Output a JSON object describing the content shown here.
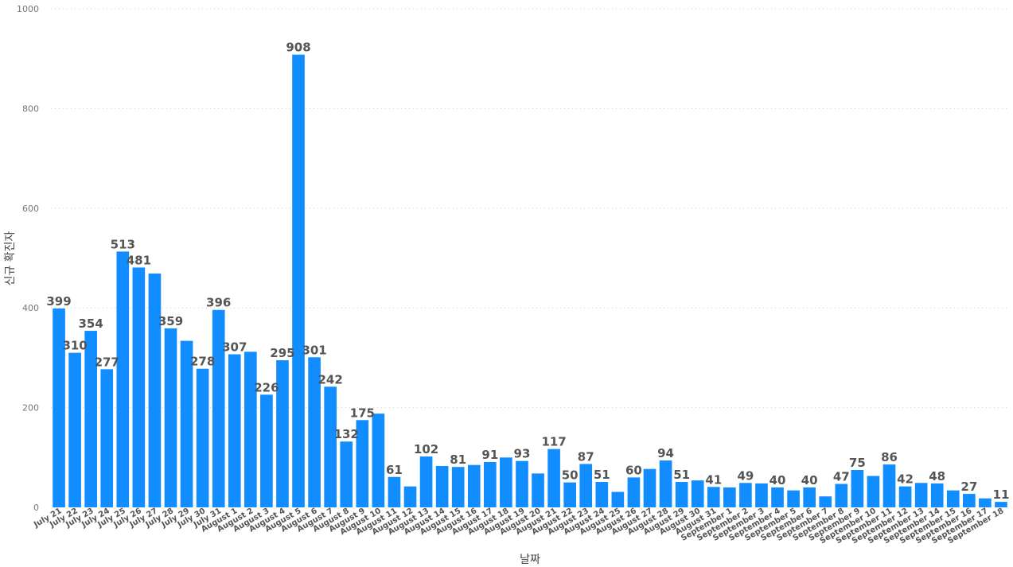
{
  "chart_data": {
    "type": "bar",
    "title": "",
    "xlabel": "날짜",
    "ylabel": "신규 확진자",
    "ylim": [
      0,
      1000
    ],
    "yticks": [
      0,
      200,
      400,
      600,
      800,
      1000
    ],
    "grid": true,
    "bar_color": "#118dff",
    "categories": [
      "July 21",
      "July 22",
      "July 23",
      "July 24",
      "July 25",
      "July 26",
      "July 27",
      "July 28",
      "July 29",
      "July 30",
      "July 31",
      "August 1",
      "August 2",
      "August 3",
      "August 4",
      "August 5",
      "August 6",
      "August 7",
      "August 8",
      "August 9",
      "August 10",
      "August 11",
      "August 12",
      "August 13",
      "August 14",
      "August 15",
      "August 16",
      "August 17",
      "August 18",
      "August 19",
      "August 20",
      "August 21",
      "August 22",
      "August 23",
      "August 24",
      "August 25",
      "August 26",
      "August 27",
      "August 28",
      "August 29",
      "August 30",
      "August 31",
      "September 1",
      "September 2",
      "September 3",
      "September 4",
      "September 5",
      "September 6",
      "September 7",
      "September 8",
      "September 9",
      "September 10",
      "September 11",
      "September 12",
      "September 13",
      "September 14",
      "September 15",
      "September 16",
      "September 17",
      "September 18"
    ],
    "values": [
      399,
      310,
      354,
      277,
      513,
      481,
      469,
      359,
      334,
      278,
      396,
      307,
      312,
      226,
      295,
      908,
      301,
      242,
      132,
      175,
      188,
      61,
      42,
      102,
      83,
      81,
      85,
      91,
      100,
      93,
      68,
      117,
      50,
      87,
      51,
      31,
      60,
      77,
      94,
      51,
      54,
      41,
      40,
      49,
      48,
      40,
      34,
      40,
      22,
      47,
      75,
      63,
      86,
      42,
      49,
      48,
      34,
      27,
      18,
      11
    ],
    "data_labels": [
      "399",
      "310",
      "354",
      "277",
      "513",
      "481",
      "",
      "359",
      "",
      "278",
      "396",
      "307",
      "",
      "226",
      "295",
      "908",
      "301",
      "242",
      "132",
      "175",
      "",
      "61",
      "",
      "102",
      "",
      "81",
      "",
      "91",
      "",
      "93",
      "",
      "117",
      "50",
      "87",
      "51",
      "",
      "60",
      "",
      "94",
      "51",
      "",
      "41",
      "",
      "49",
      "",
      "40",
      "",
      "40",
      "",
      "47",
      "75",
      "",
      "86",
      "42",
      "",
      "48",
      "",
      "27",
      "",
      "11"
    ]
  }
}
